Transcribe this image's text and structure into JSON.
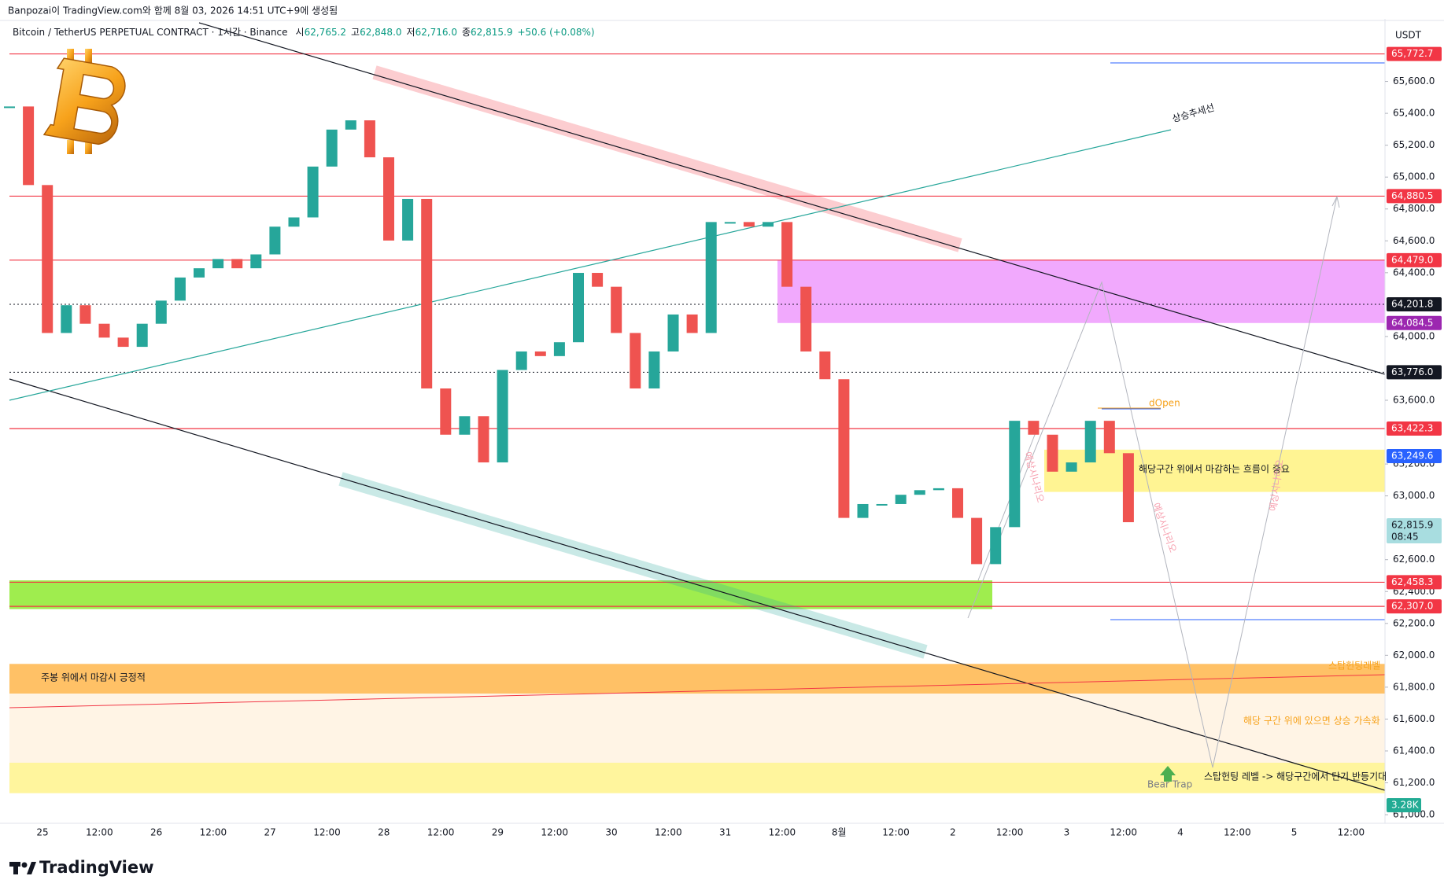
{
  "header": {
    "title": "Banpozai이 TradingView.com와 함께 8월 03, 2026 14:51 UTC+9에 생성됨"
  },
  "chart_data": {
    "type": "candlestick",
    "symbol": "Bitcoin / TetherUS PERPETUAL CONTRACT · 1시간 · Binance",
    "ohlc": [
      {
        "label": "시",
        "value": "62,765.2"
      },
      {
        "label": "고",
        "value": "62,848.0"
      },
      {
        "label": "저",
        "value": "62,716.0"
      },
      {
        "label": "종",
        "value": "62,815.9"
      }
    ],
    "change": "+50.6 (+0.08%)",
    "currency": "USDT",
    "x": [
      "25",
      "12:00",
      "26",
      "12:00",
      "27",
      "12:00",
      "28",
      "12:00",
      "29",
      "12:00",
      "30",
      "12:00",
      "31",
      "12:00",
      "8월",
      "12:00",
      "2",
      "12:00",
      "3",
      "12:00",
      "4",
      "12:00",
      "5",
      "12:00"
    ],
    "closes": [
      65443,
      64950,
      64022,
      64196,
      64080,
      63993,
      63935,
      64080,
      64225,
      64370,
      64428,
      64486,
      64428,
      64515,
      64689,
      64747,
      65066,
      65298,
      65356,
      65124,
      64602,
      64863,
      63674,
      63384,
      63500,
      63210,
      63790,
      63906,
      63877,
      63964,
      64399,
      64312,
      64022,
      63674,
      63906,
      64138,
      64022,
      64718,
      64718,
      64689,
      64718,
      64312,
      63906,
      63732,
      62862,
      62949,
      62949,
      63007,
      63036,
      63048,
      62862,
      62572,
      62804,
      63471,
      63384,
      63152,
      63210,
      63471,
      63268,
      62835
    ],
    "up_color": "#26a69a",
    "down_color": "#ef5350",
    "ylim": [
      60946,
      65958
    ],
    "yticks": [
      {
        "value": 61000,
        "label": "61,000.0"
      },
      {
        "value": 61200,
        "label": "61,200.0"
      },
      {
        "value": 61400,
        "label": "61,400.0"
      },
      {
        "value": 61600,
        "label": "61,600.0"
      },
      {
        "value": 61800,
        "label": "61,800.0"
      },
      {
        "value": 62000,
        "label": "62,000.0"
      },
      {
        "value": 62200,
        "label": "62,200.0"
      },
      {
        "value": 62400,
        "label": "62,400.0"
      },
      {
        "value": 62600,
        "label": "62,600.0"
      },
      {
        "value": 63000,
        "label": "63,000.0"
      },
      {
        "value": 63200,
        "label": "63,200.0"
      },
      {
        "value": 63600,
        "label": "63,600.0"
      },
      {
        "value": 64000,
        "label": "64,000.0"
      },
      {
        "value": 64400,
        "label": "64,400.0"
      },
      {
        "value": 64600,
        "label": "64,600.0"
      },
      {
        "value": 64800,
        "label": "64,800.0"
      },
      {
        "value": 65000,
        "label": "65,000.0"
      },
      {
        "value": 65200,
        "label": "65,200.0"
      },
      {
        "value": 65400,
        "label": "65,400.0"
      },
      {
        "value": 65600,
        "label": "65,600.0"
      }
    ],
    "price_tags": [
      {
        "value": 65772.7,
        "label": "65,772.7",
        "color": "#f23645",
        "line": "solid"
      },
      {
        "value": 64880.5,
        "label": "64,880.5",
        "color": "#f23645",
        "line": "solid"
      },
      {
        "value": 64479.0,
        "label": "64,479.0",
        "color": "#f23645",
        "line": "solid"
      },
      {
        "value": 64201.8,
        "label": "64,201.8",
        "color": "#131722",
        "line": "dotted"
      },
      {
        "value": 64084.5,
        "label": "64,084.5",
        "color": "#9c27b0",
        "line": "none"
      },
      {
        "value": 63776.0,
        "label": "63,776.0",
        "color": "#131722",
        "line": "dotted"
      },
      {
        "value": 63422.3,
        "label": "63,422.3",
        "color": "#f23645",
        "line": "solid"
      },
      {
        "value": 63249.6,
        "label": "63,249.6",
        "color": "#2962ff",
        "line": "none"
      },
      {
        "value": 62815.9,
        "label": "62,815.9",
        "color": "#a8dde0",
        "line": "none",
        "countdown": "08:45"
      },
      {
        "value": 62458.3,
        "label": "62,458.3",
        "color": "#f23645",
        "line": "solid"
      },
      {
        "value": 62307.0,
        "label": "62,307.0",
        "color": "#f23645",
        "line": "solid"
      }
    ],
    "volume_tag": "3.28K",
    "zones": [
      {
        "top": 64479,
        "bottom": 64084.5,
        "color": "rgba(224,64,251,0.45)"
      },
      {
        "top": 62470,
        "bottom": 62290,
        "color": "rgba(118,230,3,0.7)"
      },
      {
        "top": 63290,
        "bottom": 63025,
        "color": "rgba(255,235,59,0.55)"
      },
      {
        "top": 61946,
        "bottom": 61760,
        "color": "rgba(255,152,0,0.6)"
      },
      {
        "top": 61760,
        "bottom": 61326,
        "color": "rgba(255,152,0,0.1)"
      },
      {
        "top": 61326,
        "bottom": 61135,
        "color": "rgba(255,235,59,0.5)"
      }
    ],
    "annotations": {
      "trend": "상승추세선",
      "dopen": "dOpen",
      "close_above": "해당구간 위에서 마감하는 흐름이 중요",
      "weekly": "주봉 위에서 마감시 긍정적",
      "stop_level": "스탑헌팅레벨",
      "accel": "해당 구간 위에 있으면 상승 가속화",
      "rebound": "스탑헌팅 레벨 -> 해당구간에서 단기 반등기대",
      "bear_trap": "Bear Trap",
      "scenarios": [
        "예상시나리오",
        "예상시나리오",
        "예상시나리오"
      ]
    }
  },
  "footer": {
    "brand": "TradingView"
  }
}
